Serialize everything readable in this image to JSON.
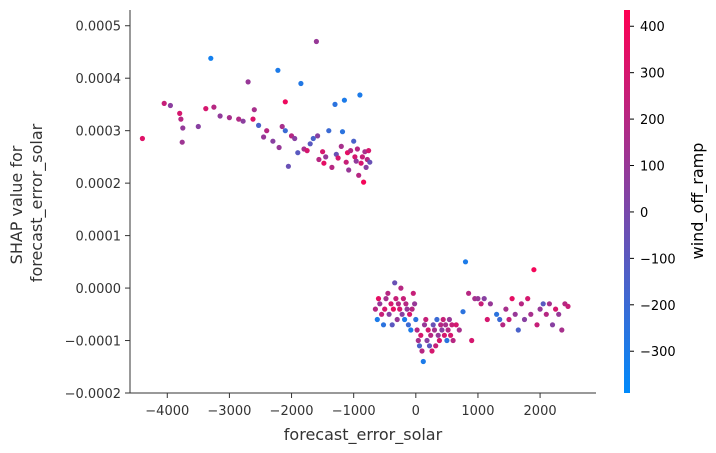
{
  "chart_data": {
    "type": "scatter",
    "xlabel": "forecast_error_solar",
    "ylabel_lines": [
      "SHAP value for",
      "forecast_error_solar"
    ],
    "xlim": [
      -4600,
      2900
    ],
    "ylim": [
      -0.0002,
      0.00053
    ],
    "x_ticks": [
      {
        "value": -4000,
        "label": "−4000"
      },
      {
        "value": -3000,
        "label": "−3000"
      },
      {
        "value": -2000,
        "label": "−2000"
      },
      {
        "value": -1000,
        "label": "−1000"
      },
      {
        "value": 0,
        "label": "0"
      },
      {
        "value": 1000,
        "label": "1000"
      },
      {
        "value": 2000,
        "label": "2000"
      }
    ],
    "y_ticks": [
      {
        "value": -0.0002,
        "label": "−0.0002"
      },
      {
        "value": -0.0001,
        "label": "−0.0001"
      },
      {
        "value": 0.0,
        "label": "0.0000"
      },
      {
        "value": 0.0001,
        "label": "0.0001"
      },
      {
        "value": 0.0002,
        "label": "0.0002"
      },
      {
        "value": 0.0003,
        "label": "0.0003"
      },
      {
        "value": 0.0004,
        "label": "0.0004"
      },
      {
        "value": 0.0005,
        "label": "0.0005"
      }
    ],
    "colorbar": {
      "label": "wind_off_ramp",
      "range": [
        -390,
        435
      ],
      "ticks": [
        {
          "value": 400,
          "label": "400"
        },
        {
          "value": 300,
          "label": "300"
        },
        {
          "value": 200,
          "label": "200"
        },
        {
          "value": 100,
          "label": "100"
        },
        {
          "value": 0,
          "label": "0"
        },
        {
          "value": -100,
          "label": "−100"
        },
        {
          "value": -200,
          "label": "−200"
        },
        {
          "value": -300,
          "label": "−300"
        }
      ],
      "colors": [
        "#008afb",
        "#ff0052"
      ]
    },
    "points": [
      [
        -4400,
        0.000285,
        330
      ],
      [
        -4050,
        0.000352,
        250
      ],
      [
        -3950,
        0.000348,
        60
      ],
      [
        -3800,
        0.000333,
        300
      ],
      [
        -3780,
        0.000322,
        200
      ],
      [
        -3760,
        0.000278,
        120
      ],
      [
        -3750,
        0.000305,
        90
      ],
      [
        -3500,
        0.000308,
        50
      ],
      [
        -3380,
        0.000342,
        300
      ],
      [
        -3300,
        0.000438,
        -330
      ],
      [
        -3250,
        0.000345,
        200
      ],
      [
        -3150,
        0.000328,
        80
      ],
      [
        -3000,
        0.000325,
        150
      ],
      [
        -2850,
        0.000322,
        180
      ],
      [
        -2780,
        0.000318,
        60
      ],
      [
        -2700,
        0.000393,
        100
      ],
      [
        -2620,
        0.000322,
        320
      ],
      [
        -2600,
        0.00034,
        150
      ],
      [
        -2530,
        0.00031,
        -150
      ],
      [
        -2450,
        0.000288,
        100
      ],
      [
        -2400,
        0.0003,
        200
      ],
      [
        -2300,
        0.00028,
        50
      ],
      [
        -2220,
        0.000415,
        -300
      ],
      [
        -2200,
        0.000268,
        100
      ],
      [
        -2150,
        0.000308,
        150
      ],
      [
        -2100,
        0.000355,
        380
      ],
      [
        -2100,
        0.0003,
        -200
      ],
      [
        -2050,
        0.000232,
        -50
      ],
      [
        -2000,
        0.00029,
        200
      ],
      [
        -1950,
        0.000285,
        50
      ],
      [
        -1900,
        0.000258,
        -100
      ],
      [
        -1850,
        0.00039,
        -280
      ],
      [
        -1800,
        0.000265,
        150
      ],
      [
        -1750,
        0.000262,
        300
      ],
      [
        -1700,
        0.000275,
        -100
      ],
      [
        -1650,
        0.000285,
        -150
      ],
      [
        -1600,
        0.00047,
        100
      ],
      [
        -1580,
        0.00029,
        50
      ],
      [
        -1560,
        0.000245,
        200
      ],
      [
        -1500,
        0.00026,
        300
      ],
      [
        -1480,
        0.000238,
        350
      ],
      [
        -1450,
        0.00025,
        100
      ],
      [
        -1400,
        0.0003,
        -200
      ],
      [
        -1350,
        0.00023,
        200
      ],
      [
        -1300,
        0.00035,
        -250
      ],
      [
        -1280,
        0.000255,
        -50
      ],
      [
        -1250,
        0.000248,
        300
      ],
      [
        -1200,
        0.00027,
        150
      ],
      [
        -1180,
        0.000298,
        -250
      ],
      [
        -1150,
        0.000358,
        -300
      ],
      [
        -1120,
        0.00024,
        250
      ],
      [
        -1100,
        0.000258,
        350
      ],
      [
        -1080,
        0.000225,
        100
      ],
      [
        -1050,
        0.000262,
        200
      ],
      [
        -1000,
        0.00028,
        -150
      ],
      [
        -980,
        0.00025,
        300
      ],
      [
        -960,
        0.000242,
        80
      ],
      [
        -940,
        0.000265,
        200
      ],
      [
        -920,
        0.000215,
        200
      ],
      [
        -900,
        0.000368,
        -300
      ],
      [
        -880,
        0.000238,
        300
      ],
      [
        -860,
        0.00025,
        250
      ],
      [
        -840,
        0.000202,
        400
      ],
      [
        -820,
        0.00026,
        150
      ],
      [
        -800,
        0.00023,
        50
      ],
      [
        -780,
        0.000245,
        200
      ],
      [
        -760,
        0.000262,
        300
      ],
      [
        -740,
        0.00024,
        -50
      ],
      [
        -650,
        -4e-05,
        200
      ],
      [
        -620,
        -6e-05,
        -300
      ],
      [
        -600,
        -2e-05,
        350
      ],
      [
        -580,
        -3e-05,
        100
      ],
      [
        -550,
        -5e-05,
        250
      ],
      [
        -520,
        -7e-05,
        -250
      ],
      [
        -500,
        -4e-05,
        300
      ],
      [
        -480,
        -2e-05,
        150
      ],
      [
        -450,
        -1e-05,
        200
      ],
      [
        -430,
        -5e-05,
        50
      ],
      [
        -400,
        -3e-05,
        300
      ],
      [
        -380,
        -7e-05,
        -100
      ],
      [
        -360,
        -4e-05,
        350
      ],
      [
        -340,
        1e-05,
        -50
      ],
      [
        -320,
        -2e-05,
        250
      ],
      [
        -300,
        -6e-05,
        100
      ],
      [
        -280,
        -3e-05,
        200
      ],
      [
        -260,
        -4e-05,
        300
      ],
      [
        -240,
        0.0,
        200
      ],
      [
        -220,
        -5e-05,
        50
      ],
      [
        -200,
        -2e-05,
        250
      ],
      [
        -180,
        -6e-05,
        -300
      ],
      [
        -160,
        -3e-05,
        200
      ],
      [
        -140,
        -4e-05,
        100
      ],
      [
        -120,
        -7e-05,
        -200
      ],
      [
        -100,
        -5e-05,
        300
      ],
      [
        -80,
        -8e-05,
        -300
      ],
      [
        -60,
        -4e-05,
        200
      ],
      [
        -40,
        -1e-05,
        250
      ],
      [
        -20,
        -3e-05,
        100
      ],
      [
        0,
        -6e-05,
        -250
      ],
      [
        20,
        -8e-05,
        200
      ],
      [
        40,
        -0.0001,
        150
      ],
      [
        60,
        -0.00011,
        -150
      ],
      [
        80,
        -9e-05,
        300
      ],
      [
        100,
        -0.00012,
        200
      ],
      [
        120,
        -0.00014,
        -300
      ],
      [
        140,
        -7e-05,
        100
      ],
      [
        160,
        -6e-05,
        250
      ],
      [
        180,
        -0.0001,
        50
      ],
      [
        200,
        -8e-05,
        300
      ],
      [
        220,
        -0.00011,
        -100
      ],
      [
        240,
        -9e-05,
        200
      ],
      [
        260,
        -0.00012,
        300
      ],
      [
        280,
        -7e-05,
        -50
      ],
      [
        300,
        -8e-05,
        150
      ],
      [
        320,
        -0.00011,
        250
      ],
      [
        340,
        -6e-05,
        -200
      ],
      [
        360,
        -9e-05,
        100
      ],
      [
        380,
        -0.0001,
        300
      ],
      [
        400,
        -7e-05,
        200
      ],
      [
        420,
        -8e-05,
        50
      ],
      [
        440,
        -6e-05,
        250
      ],
      [
        460,
        -9e-05,
        300
      ],
      [
        480,
        -7e-05,
        150
      ],
      [
        500,
        -0.0001,
        -250
      ],
      [
        520,
        -8e-05,
        200
      ],
      [
        540,
        -6e-05,
        100
      ],
      [
        560,
        -9e-05,
        300
      ],
      [
        580,
        -7e-05,
        250
      ],
      [
        600,
        -0.0001,
        200
      ],
      [
        650,
        -7e-05,
        300
      ],
      [
        700,
        -8e-05,
        150
      ],
      [
        760,
        -4.5e-05,
        -250
      ],
      [
        800,
        5e-05,
        -300
      ],
      [
        850,
        -1e-05,
        200
      ],
      [
        900,
        -0.0001,
        300
      ],
      [
        950,
        -2e-05,
        150
      ],
      [
        1000,
        -2e-05,
        100
      ],
      [
        1050,
        -3e-05,
        250
      ],
      [
        1100,
        -2e-05,
        50
      ],
      [
        1150,
        -6e-05,
        300
      ],
      [
        1200,
        -3e-05,
        100
      ],
      [
        1300,
        -5e-05,
        -250
      ],
      [
        1350,
        -6e-05,
        -200
      ],
      [
        1400,
        -7e-05,
        200
      ],
      [
        1450,
        -4e-05,
        150
      ],
      [
        1500,
        -6e-05,
        250
      ],
      [
        1550,
        -2e-05,
        350
      ],
      [
        1600,
        -5e-05,
        100
      ],
      [
        1650,
        -8e-05,
        -150
      ],
      [
        1700,
        -3e-05,
        200
      ],
      [
        1750,
        -6e-05,
        50
      ],
      [
        1800,
        -2e-05,
        300
      ],
      [
        1850,
        -5e-05,
        150
      ],
      [
        1900,
        3.5e-05,
        400
      ],
      [
        1950,
        -7e-05,
        250
      ],
      [
        2000,
        -4e-05,
        100
      ],
      [
        2050,
        -3e-05,
        -100
      ],
      [
        2100,
        -5e-05,
        200
      ],
      [
        2150,
        -3e-05,
        150
      ],
      [
        2200,
        -7e-05,
        50
      ],
      [
        2250,
        -4e-05,
        300
      ],
      [
        2300,
        -5e-05,
        100
      ],
      [
        2350,
        -8e-05,
        150
      ],
      [
        2400,
        -3e-05,
        200
      ],
      [
        2450,
        -3.5e-05,
        250
      ]
    ]
  }
}
